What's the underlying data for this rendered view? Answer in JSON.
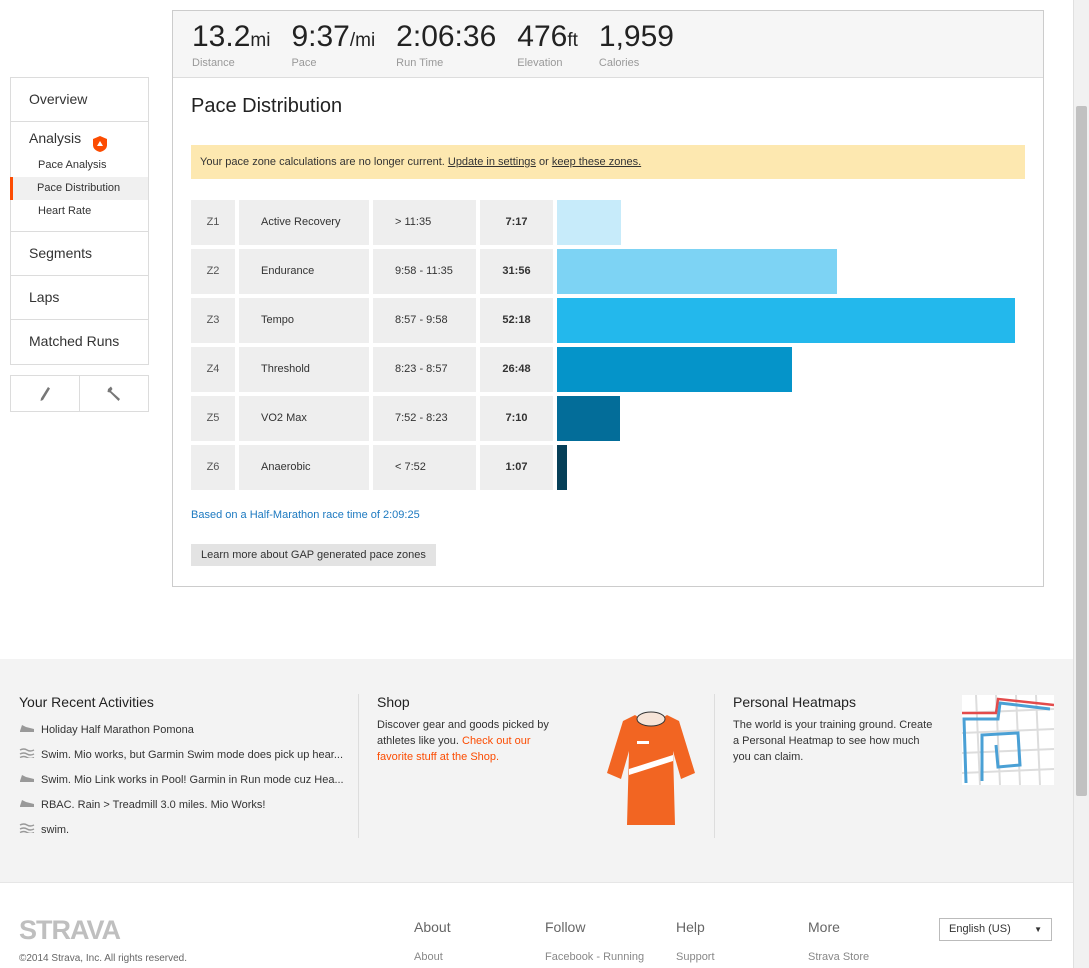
{
  "stats": [
    {
      "value": "13.2",
      "unit": "mi",
      "label": "Distance"
    },
    {
      "value": "9:37",
      "unit": "/mi",
      "label": "Pace"
    },
    {
      "value": "2:06:36",
      "unit": "",
      "label": "Run Time"
    },
    {
      "value": "476",
      "unit": "ft",
      "label": "Elevation"
    },
    {
      "value": "1,959",
      "unit": "",
      "label": "Calories"
    }
  ],
  "sidebar": {
    "overview": "Overview",
    "analysis": "Analysis",
    "sub_items": [
      "Pace Analysis",
      "Pace Distribution",
      "Heart Rate"
    ],
    "segments": "Segments",
    "laps": "Laps",
    "matched_runs": "Matched Runs",
    "icons": [
      "pencil-icon",
      "wrench-icon"
    ]
  },
  "main": {
    "title": "Pace Distribution",
    "notice_text": "Your pace zone calculations are no longer current. ",
    "notice_link1": "Update in settings",
    "notice_or": " or ",
    "notice_link2": "keep these zones.",
    "based_on": "Based on a Half-Marathon race time of 2:09:25",
    "learn_more": "Learn more about GAP generated pace zones"
  },
  "zones": [
    {
      "zone": "Z1",
      "name": "Active Recovery",
      "range": "> 11:35",
      "time": "7:17",
      "minutes": 7.28,
      "color": "#c7ebfa"
    },
    {
      "zone": "Z2",
      "name": "Endurance",
      "range": "9:58 - 11:35",
      "time": "31:56",
      "minutes": 31.93,
      "color": "#7dd3f4"
    },
    {
      "zone": "Z3",
      "name": "Tempo",
      "range": "8:57 - 9:58",
      "time": "52:18",
      "minutes": 52.3,
      "color": "#23b8ec"
    },
    {
      "zone": "Z4",
      "name": "Threshold",
      "range": "8:23 - 8:57",
      "time": "26:48",
      "minutes": 26.8,
      "color": "#0594c9"
    },
    {
      "zone": "Z5",
      "name": "VO2 Max",
      "range": "7:52 - 8:23",
      "time": "7:10",
      "minutes": 7.17,
      "color": "#036d99"
    },
    {
      "zone": "Z6",
      "name": "Anaerobic",
      "range": "< 7:52",
      "time": "1:07",
      "minutes": 1.12,
      "color": "#063f58"
    }
  ],
  "promo": {
    "recent_title": "Your Recent Activities",
    "activities": [
      {
        "icon": "run-shoe-icon",
        "text": "Holiday Half Marathon Pomona"
      },
      {
        "icon": "swim-icon",
        "text": "Swim. Mio works, but Garmin Swim mode does pick up hear..."
      },
      {
        "icon": "run-shoe-icon",
        "text": "Swim. Mio Link works in Pool! Garmin in Run mode cuz Hea..."
      },
      {
        "icon": "run-shoe-icon",
        "text": "RBAC. Rain > Treadmill 3.0 miles. Mio Works!"
      },
      {
        "icon": "swim-icon",
        "text": "swim."
      }
    ],
    "shop_title": "Shop",
    "shop_text": "Discover gear and goods picked by athletes like you. ",
    "shop_link": "Check out our favorite stuff at the Shop.",
    "heatmap_title": "Personal Heatmaps",
    "heatmap_text": "The world is your training ground. Create a Personal Heatmap to see how much you can claim."
  },
  "footer": {
    "logo": "STRAVA",
    "copyright": "©2014 Strava, Inc. All rights reserved.",
    "cols": [
      {
        "heading": "About",
        "link": "About"
      },
      {
        "heading": "Follow",
        "link": "Facebook - Running"
      },
      {
        "heading": "Help",
        "link": "Support"
      },
      {
        "heading": "More",
        "link": "Strava Store"
      }
    ],
    "language": "English (US)"
  },
  "colors": {
    "accent": "#fc4c02",
    "link": "#1c79c0",
    "notice": "#fde8b0"
  }
}
